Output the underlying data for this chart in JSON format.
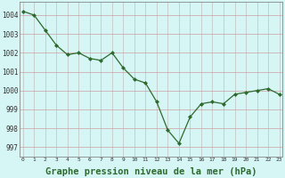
{
  "x": [
    0,
    1,
    2,
    3,
    4,
    5,
    6,
    7,
    8,
    9,
    10,
    11,
    12,
    13,
    14,
    15,
    16,
    17,
    18,
    19,
    20,
    21,
    22,
    23
  ],
  "y": [
    1004.2,
    1004.0,
    1003.2,
    1002.4,
    1001.9,
    1002.0,
    1001.7,
    1001.6,
    1002.0,
    1001.2,
    1000.6,
    1000.4,
    999.4,
    997.9,
    997.2,
    998.6,
    999.3,
    999.4,
    999.3,
    999.8,
    999.9,
    1000.0,
    1000.1,
    999.8
  ],
  "line_color": "#2d6a2d",
  "marker": "D",
  "marker_size": 2,
  "bg_color": "#d6f5f5",
  "grid_color": "#b0b0b0",
  "grid_color_h": "#c8a0a0",
  "xlabel": "Graphe pression niveau de la mer (hPa)",
  "xlabel_fontsize": 7.5,
  "xlabel_bold": true,
  "yticks": [
    997,
    998,
    999,
    1000,
    1001,
    1002,
    1003,
    1004
  ],
  "xticks": [
    0,
    1,
    2,
    3,
    4,
    5,
    6,
    7,
    8,
    9,
    10,
    11,
    12,
    13,
    14,
    15,
    16,
    17,
    18,
    19,
    20,
    21,
    22,
    23
  ],
  "ylim": [
    996.5,
    1004.7
  ],
  "xlim": [
    -0.3,
    23.3
  ]
}
